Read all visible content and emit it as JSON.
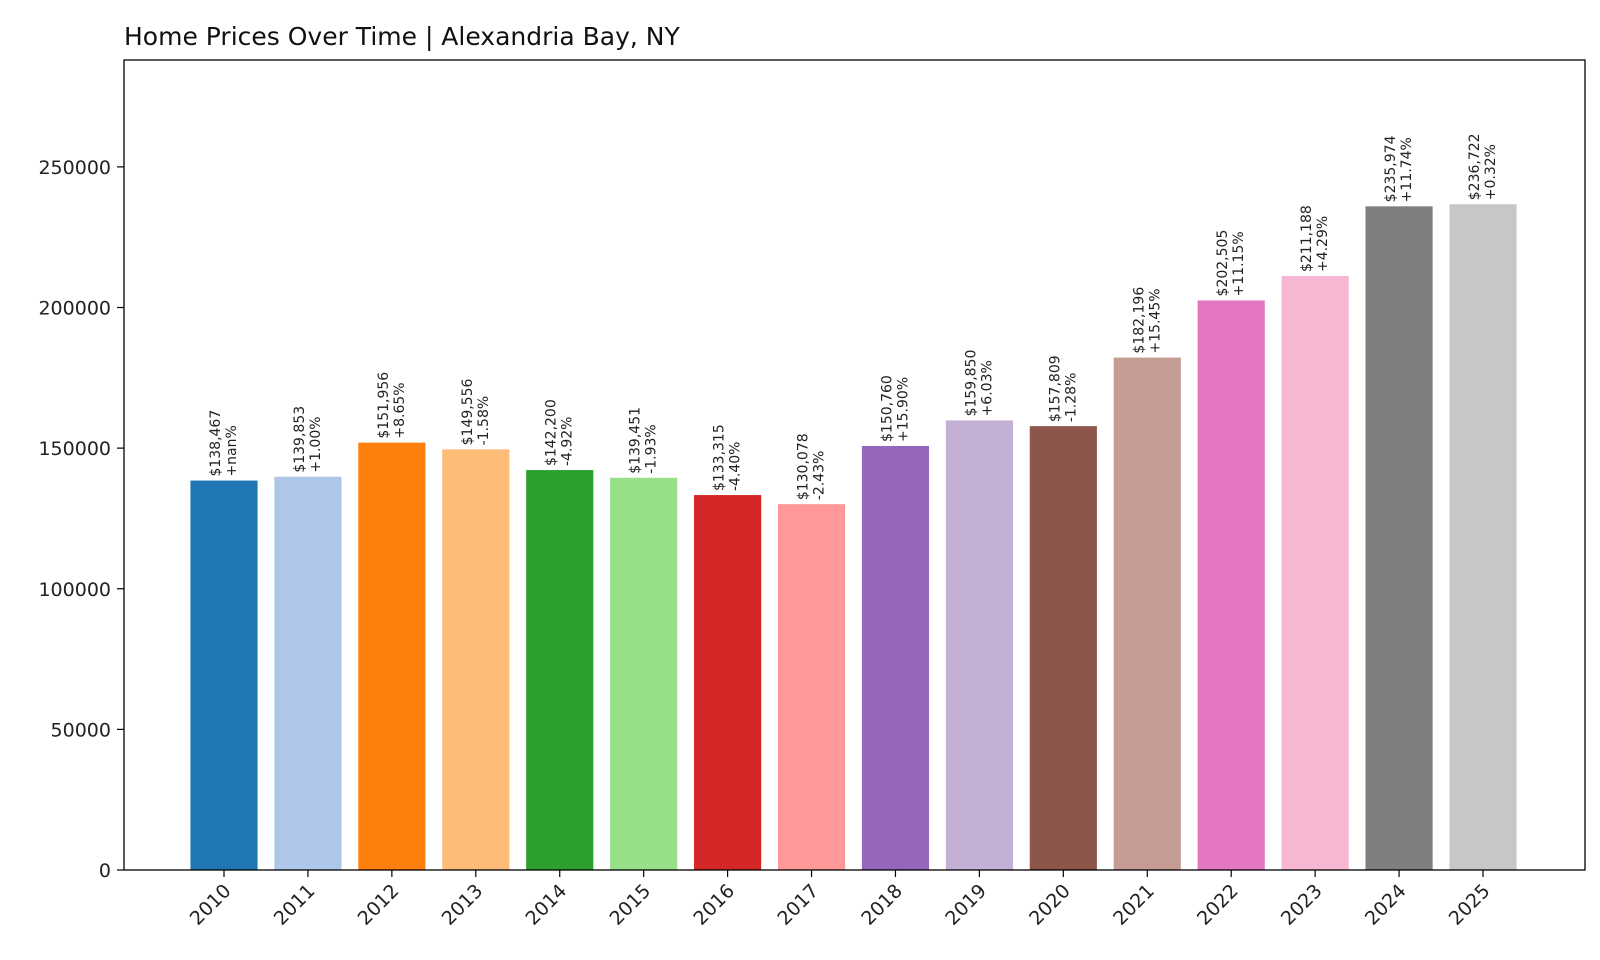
{
  "chart_data": {
    "type": "bar",
    "title": "Home Prices Over Time | Alexandria Bay, NY",
    "xlabel": "",
    "ylabel": "",
    "ylim": [
      0,
      288000
    ],
    "yticks": [
      0,
      50000,
      100000,
      150000,
      200000,
      250000
    ],
    "ytick_labels": [
      "0",
      "50000",
      "100000",
      "150000",
      "200000",
      "250000"
    ],
    "grid": false,
    "categories": [
      "2010",
      "2011",
      "2012",
      "2013",
      "2014",
      "2015",
      "2016",
      "2017",
      "2018",
      "2019",
      "2020",
      "2021",
      "2022",
      "2023",
      "2024",
      "2025"
    ],
    "values": [
      138467,
      139853,
      151956,
      149556,
      142200,
      139451,
      133315,
      130078,
      150760,
      159850,
      157809,
      182196,
      202505,
      211188,
      235974,
      236722
    ],
    "value_labels": [
      "$138,467",
      "$139,853",
      "$151,956",
      "$149,556",
      "$142,200",
      "$139,451",
      "$133,315",
      "$130,078",
      "$150,760",
      "$159,850",
      "$157,809",
      "$182,196",
      "$202,505",
      "$211,188",
      "$235,974",
      "$236,722"
    ],
    "change_labels": [
      "+nan%",
      "+1.00%",
      "+8.65%",
      "-1.58%",
      "-4.92%",
      "-1.93%",
      "-4.40%",
      "-2.43%",
      "+15.90%",
      "+6.03%",
      "-1.28%",
      "+15.45%",
      "+11.15%",
      "+4.29%",
      "+11.74%",
      "+0.32%"
    ],
    "colors": [
      "#1f77b4",
      "#aec7e8",
      "#ff7f0e",
      "#ffbb78",
      "#2ca02c",
      "#98df8a",
      "#d62728",
      "#ff9896",
      "#9467bd",
      "#c5b0d5",
      "#8c564b",
      "#c49c94",
      "#e377c2",
      "#f7b6d2",
      "#7f7f7f",
      "#c7c7c7"
    ]
  }
}
